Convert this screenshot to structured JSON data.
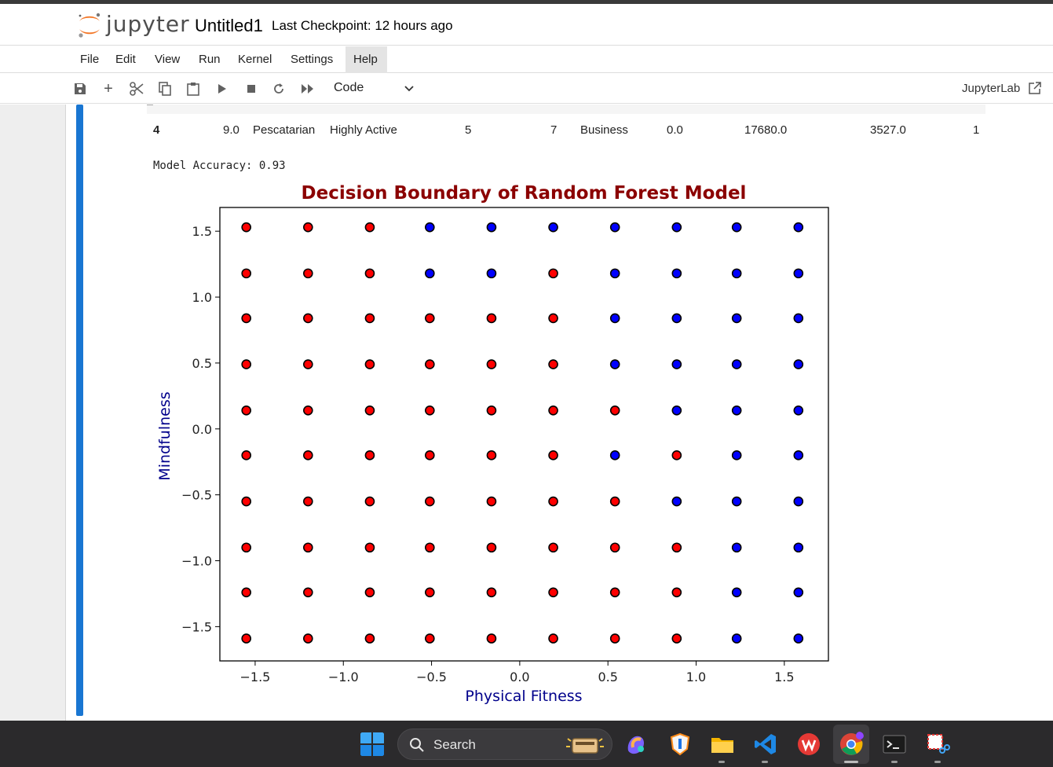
{
  "app": {
    "logo_text": "jupyter",
    "notebook_title": "Untitled1",
    "checkpoint": "Last Checkpoint: 12 hours ago"
  },
  "menu": {
    "items": [
      "File",
      "Edit",
      "View",
      "Run",
      "Kernel",
      "Settings",
      "Help"
    ],
    "active": "Help"
  },
  "toolbar": {
    "cell_type": "Code",
    "jupyterlab_link": "JupyterLab",
    "icons": [
      "save-icon",
      "add-icon",
      "cut-icon",
      "copy-icon",
      "paste-icon",
      "run-icon",
      "stop-icon",
      "restart-icon",
      "fast-forward-icon"
    ]
  },
  "table": {
    "row4": {
      "index": "4",
      "c1": "9.0",
      "c2": "Pescatarian",
      "c3": "Highly Active",
      "c4": "5",
      "c5": "7",
      "c6": "Business",
      "c7": "0.0",
      "c8": "17680.0",
      "c9": "3527.0",
      "c10": "1"
    }
  },
  "output": {
    "accuracy_text": "Model Accuracy: 0.93"
  },
  "chart_data": {
    "type": "scatter",
    "title": "Decision Boundary of Random Forest Model",
    "xlabel": "Physical Fitness",
    "ylabel": "Mindfulness",
    "xlim": [
      -1.7,
      1.75
    ],
    "ylim": [
      -1.76,
      1.68
    ],
    "xticks": [
      -1.5,
      -1.0,
      -0.5,
      0.0,
      0.5,
      1.0,
      1.5
    ],
    "yticks": [
      -1.5,
      -1.0,
      -0.5,
      0.0,
      0.5,
      1.0,
      1.5
    ],
    "xtick_labels": [
      "−1.5",
      "−1.0",
      "−0.5",
      "0.0",
      "0.5",
      "1.0",
      "1.5"
    ],
    "ytick_labels": [
      "−1.5",
      "−1.0",
      "−0.5",
      "0.0",
      "0.5",
      "1.0",
      "1.5"
    ],
    "x": [
      -1.55,
      -1.2,
      -0.85,
      -0.51,
      -0.16,
      0.19,
      0.54,
      0.89,
      1.23,
      1.58
    ],
    "y": [
      1.53,
      1.18,
      0.84,
      0.49,
      0.14,
      -0.2,
      -0.55,
      -0.9,
      -1.24,
      -1.59
    ],
    "colors": {
      "0": "#ff0000",
      "1": "#0000ff"
    },
    "title_color": "#8b0000",
    "label_color": "#00008b",
    "classes": [
      [
        0,
        0,
        0,
        1,
        1,
        1,
        1,
        1,
        1,
        1
      ],
      [
        0,
        0,
        0,
        1,
        1,
        0,
        1,
        1,
        1,
        1
      ],
      [
        0,
        0,
        0,
        0,
        0,
        0,
        1,
        1,
        1,
        1
      ],
      [
        0,
        0,
        0,
        0,
        0,
        0,
        1,
        1,
        1,
        1
      ],
      [
        0,
        0,
        0,
        0,
        0,
        0,
        0,
        1,
        1,
        1
      ],
      [
        0,
        0,
        0,
        0,
        0,
        0,
        1,
        0,
        1,
        1
      ],
      [
        0,
        0,
        0,
        0,
        0,
        0,
        0,
        1,
        1,
        1
      ],
      [
        0,
        0,
        0,
        0,
        0,
        0,
        0,
        0,
        1,
        1
      ],
      [
        0,
        0,
        0,
        0,
        0,
        0,
        0,
        0,
        1,
        1
      ],
      [
        0,
        0,
        0,
        0,
        0,
        0,
        0,
        0,
        1,
        1
      ]
    ]
  },
  "taskbar": {
    "search_label": "Search"
  }
}
